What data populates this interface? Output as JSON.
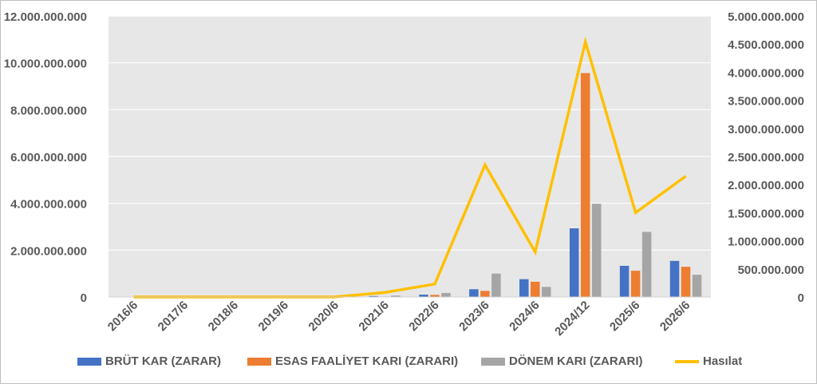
{
  "chart_data": {
    "type": "bar",
    "categories": [
      "2016/6",
      "2017/6",
      "2018/6",
      "2019/6",
      "2020/6",
      "2021/6",
      "2022/6",
      "2023/6",
      "2024/6",
      "2024/12",
      "2025/6",
      "2026/6"
    ],
    "y_left_ticks": [
      "0",
      "2.000.000.000",
      "4.000.000.000",
      "6.000.000.000",
      "8.000.000.000",
      "10.000.000.000",
      "12.000.000.000"
    ],
    "y_right_ticks": [
      "0",
      "500.000.000",
      "1.000.000.000",
      "1.500.000.000",
      "2.000.000.000",
      "2.500.000.000",
      "3.000.000.000",
      "3.500.000.000",
      "4.000.000.000",
      "4.500.000.000",
      "5.000.000.000"
    ],
    "ylim_left": [
      0,
      12000000000
    ],
    "ylim_right": [
      0,
      5000000000
    ],
    "grid": true,
    "legend_position": "bottom",
    "series": [
      {
        "name": "BRÜT KAR (ZARAR)",
        "kind": "bar",
        "axis": "left",
        "color": "#4472c4",
        "values": [
          0,
          0,
          0,
          0,
          0,
          40000000,
          100000000,
          330000000,
          760000000,
          2930000000,
          1330000000,
          1540000000
        ]
      },
      {
        "name": "ESAS FAALİYET KARI (ZARARI)",
        "kind": "bar",
        "axis": "left",
        "color": "#ed7d31",
        "values": [
          0,
          0,
          0,
          0,
          0,
          20000000,
          90000000,
          260000000,
          650000000,
          9560000000,
          1120000000,
          1290000000
        ]
      },
      {
        "name": "DÖNEM KARI (ZARARI)",
        "kind": "bar",
        "axis": "left",
        "color": "#a5a5a5",
        "values": [
          0,
          0,
          0,
          0,
          0,
          60000000,
          170000000,
          1000000000,
          430000000,
          3980000000,
          2780000000,
          950000000
        ]
      },
      {
        "name": "Hasılat",
        "kind": "line",
        "axis": "right",
        "color": "#ffc000",
        "values": [
          0,
          0,
          0,
          0,
          0,
          80000000,
          230000000,
          2350000000,
          800000000,
          4540000000,
          1500000000,
          2150000000
        ]
      }
    ]
  }
}
